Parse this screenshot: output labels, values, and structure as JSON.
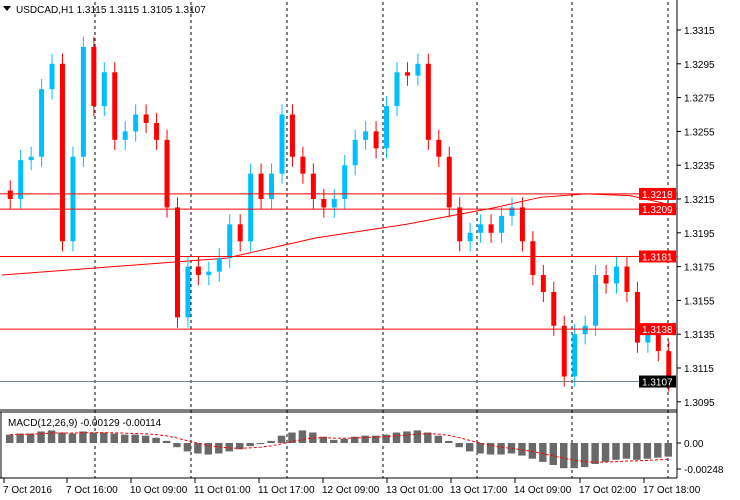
{
  "chart_data": {
    "type": "candlestick",
    "title": "USDCAD,H1  1.3115 1.3115 1.3105 1.3107",
    "symbol": "USDCAD,H1",
    "ohlc_last": [
      "1.3115",
      "1.3115",
      "1.3105",
      "1.3107"
    ],
    "ylim": [
      1.3085,
      1.3325
    ],
    "y_ticks": [
      "1.3315",
      "1.3295",
      "1.3275",
      "1.3255",
      "1.3235",
      "1.3215",
      "1.3195",
      "1.3175",
      "1.3155",
      "1.3135",
      "1.3115",
      "1.3095"
    ],
    "x_ticks": [
      "7 Oct 2016",
      "7 Oct 16:00",
      "10 Oct 09:00",
      "11 Oct 01:00",
      "11 Oct 17:00",
      "12 Oct 09:00",
      "13 Oct 01:00",
      "13 Oct 17:00",
      "14 Oct 09:00",
      "17 Oct 02:00",
      "17 Oct 18:00"
    ],
    "closes": [
      1.3215,
      1.3238,
      1.324,
      1.328,
      1.3295,
      1.319,
      1.324,
      1.3305,
      1.327,
      1.329,
      1.325,
      1.3255,
      1.3265,
      1.326,
      1.325,
      1.321,
      1.3145,
      1.3175,
      1.317,
      1.3172,
      1.318,
      1.32,
      1.319,
      1.323,
      1.3215,
      1.323,
      1.3265,
      1.324,
      1.323,
      1.3215,
      1.321,
      1.3215,
      1.3235,
      1.325,
      1.3255,
      1.3245,
      1.327,
      1.329,
      1.3288,
      1.3295,
      1.325,
      1.324,
      1.321,
      1.319,
      1.3195,
      1.32,
      1.3195,
      1.3205,
      1.321,
      1.319,
      1.317,
      1.316,
      1.314,
      1.311,
      1.3135,
      1.314,
      1.317,
      1.3165,
      1.3175,
      1.316,
      1.313,
      1.3135,
      1.3125,
      1.3107
    ],
    "moving_average": [
      1.317,
      1.3172,
      1.3174,
      1.3176,
      1.3178,
      1.318,
      1.3186,
      1.3192,
      1.3196,
      1.32,
      1.3205,
      1.321,
      1.3216,
      1.3218,
      1.3217,
      1.3211
    ],
    "levels": [
      {
        "value": "1.3218",
        "color": "#ff0000"
      },
      {
        "value": "1.3209",
        "color": "#ff0000"
      },
      {
        "value": "1.3181",
        "color": "#ff0000"
      },
      {
        "value": "1.3138",
        "color": "#ff0000"
      },
      {
        "value": "1.3107",
        "color": "#708090",
        "current": true
      }
    ],
    "macd": {
      "label": "MACD(12,26,9) -0.00129 -0.00114",
      "y_ticks": [
        "0.00",
        "-0.00248"
      ],
      "ylim": [
        -0.003,
        0.0015
      ],
      "values": [
        0.0008,
        0.0009,
        0.0009,
        0.0011,
        0.0012,
        0.001,
        0.0009,
        0.0011,
        0.001,
        0.001,
        0.0009,
        0.0008,
        0.0008,
        0.0007,
        0.0005,
        0.0002,
        -0.0004,
        -0.0008,
        -0.001,
        -0.0011,
        -0.001,
        -0.0008,
        -0.0006,
        -0.0003,
        -0.0001,
        0.0002,
        0.0007,
        0.001,
        0.0012,
        0.001,
        0.0006,
        0.0003,
        0.0004,
        0.0006,
        0.0007,
        0.0007,
        0.0008,
        0.001,
        0.0011,
        0.0012,
        0.001,
        0.0007,
        0.0002,
        -0.0004,
        -0.0008,
        -0.001,
        -0.0011,
        -0.0011,
        -0.001,
        -0.0012,
        -0.0015,
        -0.0018,
        -0.0021,
        -0.0024,
        -0.0024,
        -0.0023,
        -0.002,
        -0.0018,
        -0.0016,
        -0.0015,
        -0.0016,
        -0.0015,
        -0.0014,
        -0.0013
      ]
    },
    "colors": {
      "bull": "#00bfff",
      "bear": "#ff0000",
      "ma": "#ff0000",
      "histogram": "#696969",
      "signal": "#ff0000"
    },
    "grid": false
  }
}
